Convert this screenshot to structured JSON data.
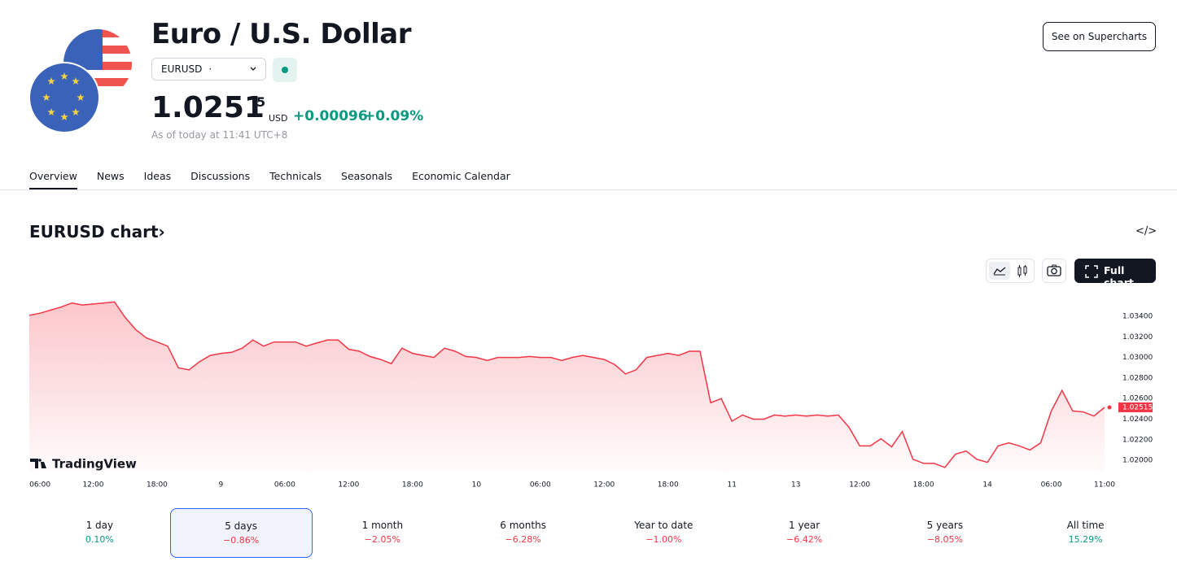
{
  "header": {
    "title": "Euro / U.S. Dollar",
    "symbol": "EURUSD",
    "symbol_separator": "·",
    "price": "1.0251",
    "price_last_digit": "5",
    "currency": "USD",
    "change": "+0.00096",
    "change_percent": "+0.09%",
    "as_of": "As of today at 11:41 UTC+8",
    "button": "See on Supercharts"
  },
  "tabs": {
    "items": [
      "Overview",
      "News",
      "Ideas",
      "Discussions",
      "Technicals",
      "Seasonals",
      "Economic Calendar"
    ],
    "active": 0
  },
  "chart_section": {
    "title": "EURUSD chart",
    "chevron": "›",
    "embed_icon": "</>",
    "full_chart_button": "Full chart",
    "watermark": "TradingView"
  },
  "chart_data": {
    "type": "area",
    "color": "#f23645",
    "categories": [
      null,
      "06:00",
      null,
      null,
      null,
      null,
      "12:00",
      null,
      null,
      null,
      null,
      null,
      "18:00",
      null,
      null,
      null,
      null,
      null,
      "9",
      null,
      null,
      null,
      null,
      null,
      "06:00",
      null,
      null,
      null,
      null,
      null,
      "12:00",
      null,
      null,
      null,
      null,
      null,
      "18:00",
      null,
      null,
      null,
      null,
      null,
      "10",
      null,
      null,
      null,
      null,
      null,
      "06:00",
      null,
      null,
      null,
      null,
      null,
      "12:00",
      null,
      null,
      null,
      null,
      null,
      "18:00",
      null,
      null,
      null,
      null,
      null,
      "11",
      null,
      null,
      null,
      null,
      null,
      "13",
      null,
      null,
      null,
      null,
      null,
      "12:00",
      null,
      null,
      null,
      null,
      null,
      "18:00",
      null,
      null,
      null,
      null,
      null,
      "14",
      null,
      null,
      null,
      null,
      null,
      "06:00",
      null,
      null,
      null,
      null,
      "11:00"
    ],
    "values": [
      1.0341,
      1.0343,
      1.0346,
      1.0349,
      1.0353,
      1.0351,
      1.0352,
      1.0353,
      1.0354,
      1.0339,
      1.0327,
      1.0319,
      1.0315,
      1.0311,
      1.029,
      1.0288,
      1.0296,
      1.0302,
      1.0304,
      1.0305,
      1.0309,
      1.0317,
      1.0311,
      1.0315,
      1.0315,
      1.0315,
      1.0311,
      1.0314,
      1.0317,
      1.0317,
      1.0308,
      1.0306,
      1.0301,
      1.0298,
      1.0294,
      1.0309,
      1.0304,
      1.0302,
      1.03,
      1.0309,
      1.0306,
      1.0301,
      1.03,
      1.0297,
      1.03,
      1.03,
      1.03,
      1.0301,
      1.03,
      1.03,
      1.0297,
      1.03,
      1.0302,
      1.03,
      1.0298,
      1.0293,
      1.0284,
      1.0288,
      1.03,
      1.0302,
      1.0304,
      1.0302,
      1.0306,
      1.0306,
      1.0256,
      1.026,
      1.0238,
      1.0244,
      1.024,
      1.024,
      1.0244,
      1.0243,
      1.0244,
      1.0243,
      1.0244,
      1.0243,
      1.0244,
      1.0232,
      1.0214,
      1.0214,
      1.0221,
      1.0213,
      1.0228,
      1.0201,
      1.0197,
      1.0197,
      1.0193,
      1.0206,
      1.0209,
      1.0201,
      1.0198,
      1.0214,
      1.0217,
      1.0214,
      1.021,
      1.0217,
      1.0248,
      1.0268,
      1.0248,
      1.0247,
      1.0243,
      1.02515
    ],
    "last_label": "1.02515",
    "ylim": [
      1.0189,
      1.0359
    ],
    "yticks": [
      {
        "value": 1.02,
        "label": "1.02000"
      },
      {
        "value": 1.022,
        "label": "1.02200"
      },
      {
        "value": 1.024,
        "label": "1.02400"
      },
      {
        "value": 1.026,
        "label": "1.02600"
      },
      {
        "value": 1.028,
        "label": "1.02800"
      },
      {
        "value": 1.03,
        "label": "1.03000"
      },
      {
        "value": 1.032,
        "label": "1.03200"
      },
      {
        "value": 1.034,
        "label": "1.03400"
      }
    ]
  },
  "periods": {
    "items": [
      {
        "label": "1 day",
        "change": "0.10%",
        "direction": "up"
      },
      {
        "label": "5 days",
        "change": "−0.86%",
        "direction": "down"
      },
      {
        "label": "1 month",
        "change": "−2.05%",
        "direction": "down"
      },
      {
        "label": "6 months",
        "change": "−6.28%",
        "direction": "down"
      },
      {
        "label": "Year to date",
        "change": "−1.00%",
        "direction": "down"
      },
      {
        "label": "1 year",
        "change": "−6.42%",
        "direction": "down"
      },
      {
        "label": "5 years",
        "change": "−8.05%",
        "direction": "down"
      },
      {
        "label": "All time",
        "change": "15.29%",
        "direction": "up"
      }
    ],
    "active": 1
  }
}
